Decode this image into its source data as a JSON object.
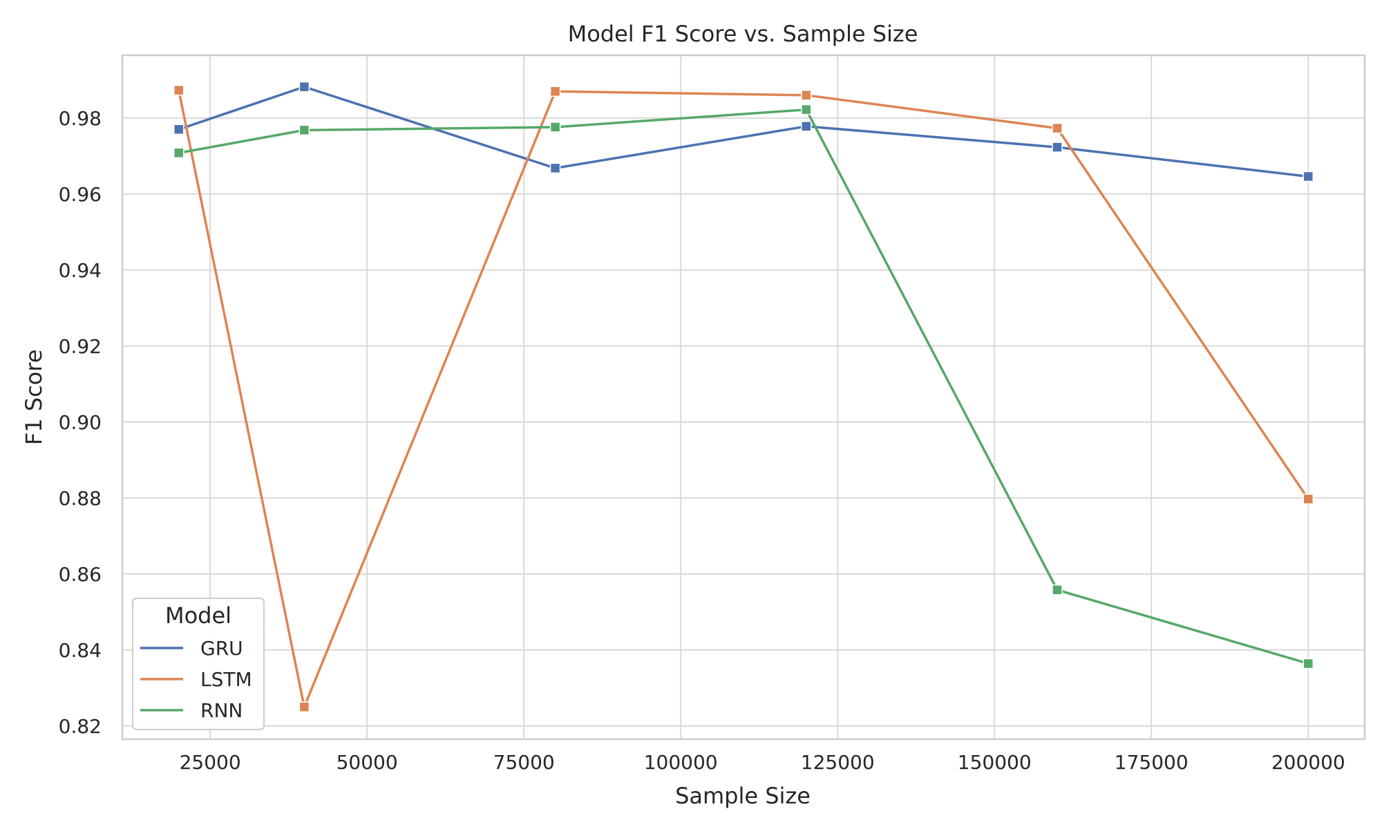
{
  "chart_data": {
    "type": "line",
    "title": "Model F1 Score vs. Sample Size",
    "xlabel": "Sample Size",
    "ylabel": "F1 Score",
    "x": [
      20000,
      40000,
      80000,
      120000,
      160000,
      200000
    ],
    "xlim": [
      11000,
      209000
    ],
    "ylim": [
      0.8165,
      0.9965
    ],
    "xticks": [
      25000,
      50000,
      75000,
      100000,
      125000,
      150000,
      175000,
      200000
    ],
    "yticks": [
      0.82,
      0.84,
      0.86,
      0.88,
      0.9,
      0.92,
      0.94,
      0.96,
      0.98
    ],
    "ytick_labels": [
      "0.82",
      "0.84",
      "0.86",
      "0.88",
      "0.90",
      "0.92",
      "0.94",
      "0.96",
      "0.98"
    ],
    "grid": true,
    "marker": "square",
    "legend": {
      "title": "Model",
      "position": "lower-left"
    },
    "series": [
      {
        "name": "GRU",
        "color": "#4c72b0",
        "values": [
          0.977,
          0.9882,
          0.9668,
          0.9778,
          0.9723,
          0.9646
        ]
      },
      {
        "name": "LSTM",
        "color": "#dd8452",
        "values": [
          0.9873,
          0.825,
          0.987,
          0.986,
          0.9773,
          0.8797
        ]
      },
      {
        "name": "RNN",
        "color": "#55a868",
        "values": [
          0.9708,
          0.9768,
          0.9776,
          0.9822,
          0.8558,
          0.8364
        ]
      }
    ]
  }
}
